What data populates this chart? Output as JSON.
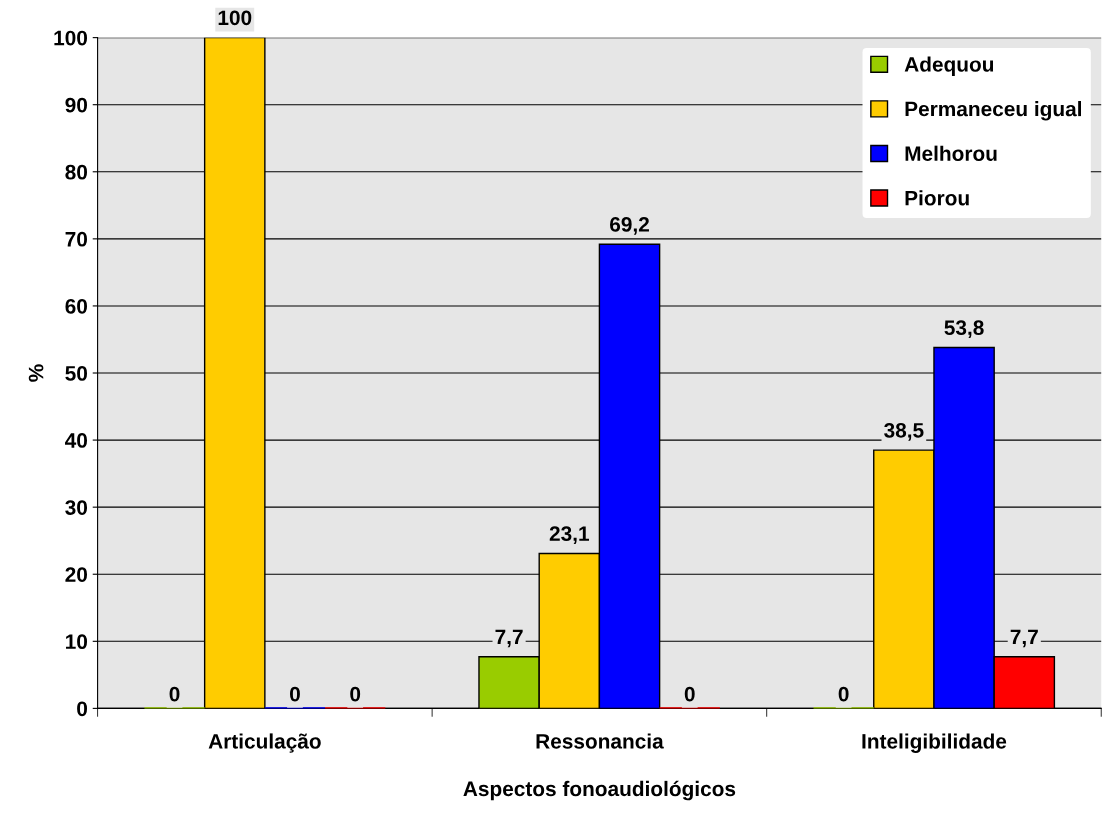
{
  "chart_data": {
    "type": "bar",
    "xlabel": "Aspectos fonoaudiológicos",
    "ylabel": "%",
    "categories": [
      "Articulação",
      "Ressonancia",
      "Inteligibilidade"
    ],
    "series": [
      {
        "name": "Adequou",
        "color": "#99cc00",
        "values": [
          0,
          7.7,
          0
        ],
        "value_labels": [
          "0",
          "7,7",
          "0"
        ]
      },
      {
        "name": "Permaneceu igual",
        "color": "#ffcc00",
        "values": [
          100,
          23.1,
          38.5
        ],
        "value_labels": [
          "100",
          "23,1",
          "38,5"
        ]
      },
      {
        "name": "Melhorou",
        "color": "#0000ff",
        "values": [
          0,
          69.2,
          53.8
        ],
        "value_labels": [
          "0",
          "69,2",
          "53,8"
        ]
      },
      {
        "name": "Piorou",
        "color": "#ff0000",
        "values": [
          0,
          0,
          7.7
        ],
        "value_labels": [
          "0",
          "0",
          "7,7"
        ]
      }
    ],
    "ylim": [
      0,
      100
    ],
    "yticks": [
      0,
      10,
      20,
      30,
      40,
      50,
      60,
      70,
      80,
      90,
      100
    ],
    "grid": "y",
    "legend": "top right"
  }
}
